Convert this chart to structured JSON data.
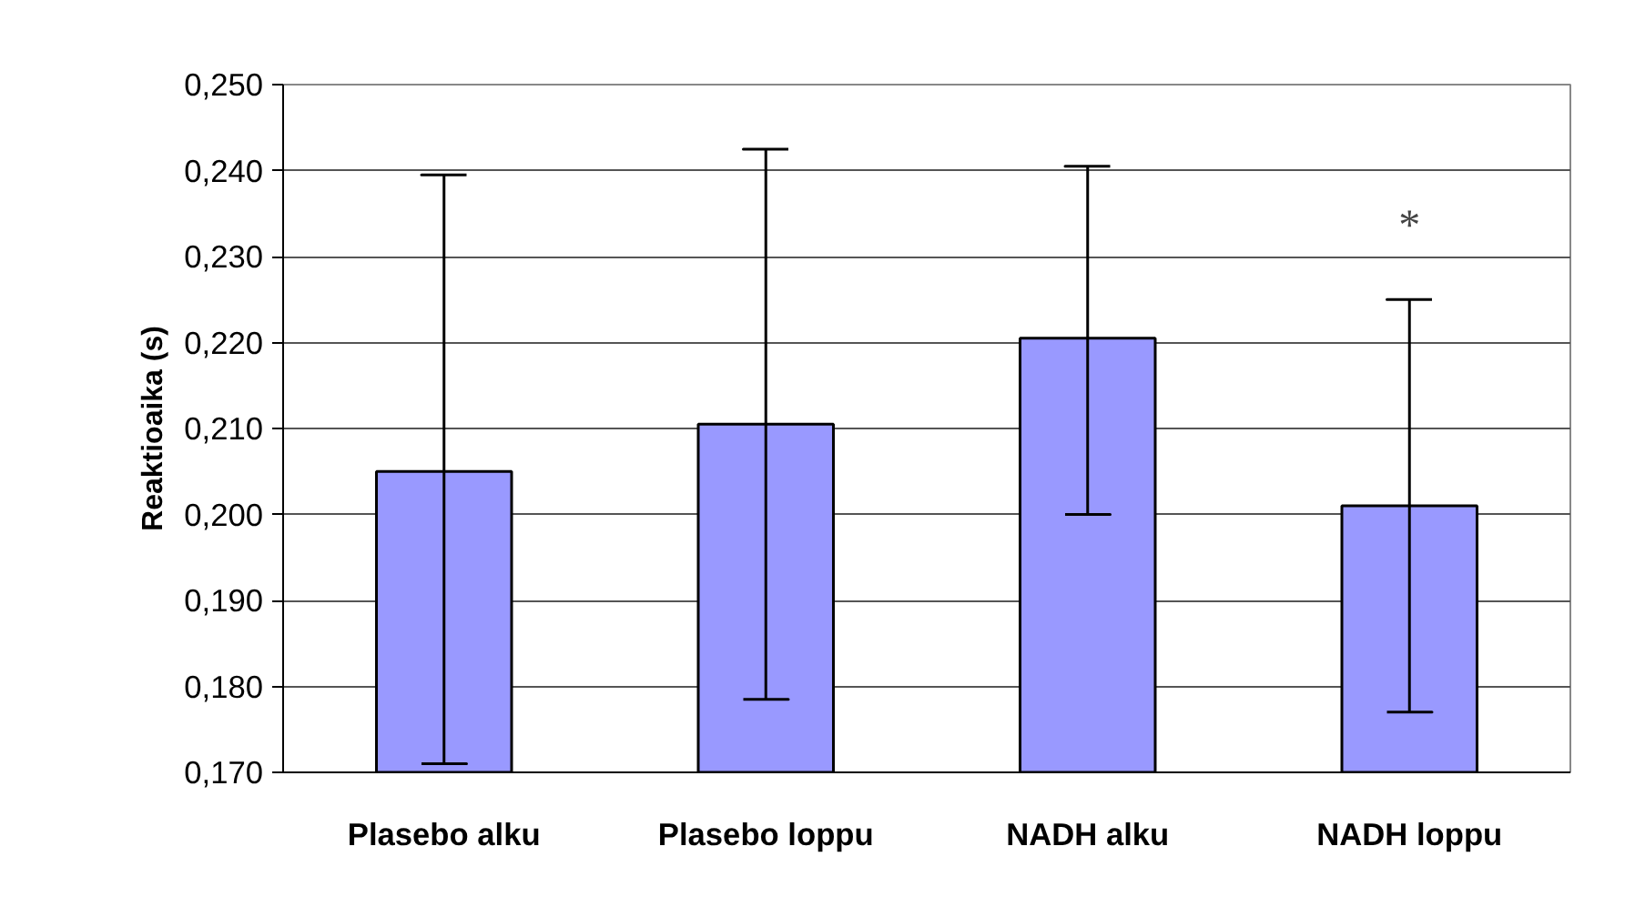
{
  "chart_data": {
    "type": "bar",
    "ylabel": "Reaktioaika (s)",
    "categories": [
      "Plasebo alku",
      "Plasebo loppu",
      "NADH alku",
      "NADH loppu"
    ],
    "values": [
      0.205,
      0.2105,
      0.2205,
      0.201
    ],
    "color": "#9999ff",
    "errors": [
      [
        0.171,
        0.2395
      ],
      [
        0.1785,
        0.2425
      ],
      [
        0.2,
        0.2405
      ],
      [
        0.177,
        0.225
      ]
    ],
    "ylim": [
      0.17,
      0.25
    ],
    "yticks": [
      {
        "value": 0.17,
        "label": "0,170"
      },
      {
        "value": 0.18,
        "label": "0,180"
      },
      {
        "value": 0.19,
        "label": "0,190"
      },
      {
        "value": 0.2,
        "label": "0,200"
      },
      {
        "value": 0.21,
        "label": "0,210"
      },
      {
        "value": 0.22,
        "label": "0,220"
      },
      {
        "value": 0.23,
        "label": "0,230"
      },
      {
        "value": 0.24,
        "label": "0,240"
      },
      {
        "value": 0.25,
        "label": "0,250"
      }
    ],
    "grid": "y",
    "annotations": [
      "*"
    ]
  }
}
